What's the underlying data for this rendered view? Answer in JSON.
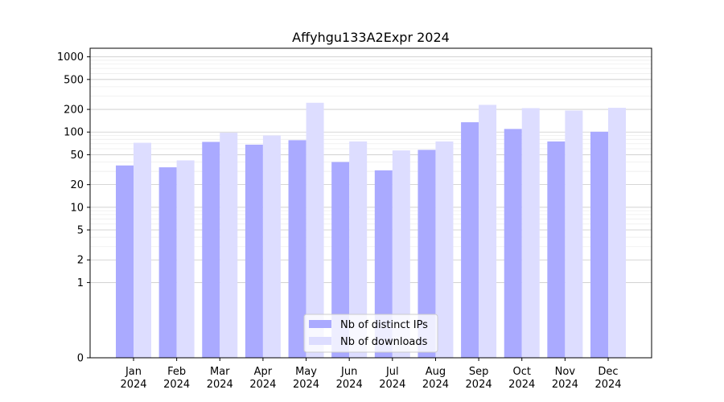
{
  "chart_data": {
    "type": "bar",
    "title": "Affyhgu133A2Expr 2024",
    "xlabel": "",
    "ylabel": "",
    "yscale": "symlog",
    "ylim": [
      0,
      1300
    ],
    "y_ticks": [
      0,
      1,
      2,
      5,
      10,
      20,
      50,
      100,
      200,
      500,
      1000
    ],
    "y_tick_labels": [
      "0",
      "1",
      "2",
      "5",
      "10",
      "20",
      "50",
      "100",
      "200",
      "500",
      "1000"
    ],
    "grid": true,
    "legend_position": "bottom-center",
    "categories": [
      {
        "month": "Jan",
        "year": "2024"
      },
      {
        "month": "Feb",
        "year": "2024"
      },
      {
        "month": "Mar",
        "year": "2024"
      },
      {
        "month": "Apr",
        "year": "2024"
      },
      {
        "month": "May",
        "year": "2024"
      },
      {
        "month": "Jun",
        "year": "2024"
      },
      {
        "month": "Jul",
        "year": "2024"
      },
      {
        "month": "Aug",
        "year": "2024"
      },
      {
        "month": "Sep",
        "year": "2024"
      },
      {
        "month": "Oct",
        "year": "2024"
      },
      {
        "month": "Nov",
        "year": "2024"
      },
      {
        "month": "Dec",
        "year": "2024"
      }
    ],
    "series": [
      {
        "name": "Nb of distinct IPs",
        "color": "#aaaaff",
        "values": [
          36,
          34,
          74,
          68,
          78,
          40,
          31,
          58,
          135,
          110,
          75,
          101
        ]
      },
      {
        "name": "Nb of downloads",
        "color": "#ddddff",
        "values": [
          72,
          42,
          98,
          90,
          245,
          75,
          57,
          75,
          230,
          208,
          193,
          210
        ]
      }
    ]
  }
}
